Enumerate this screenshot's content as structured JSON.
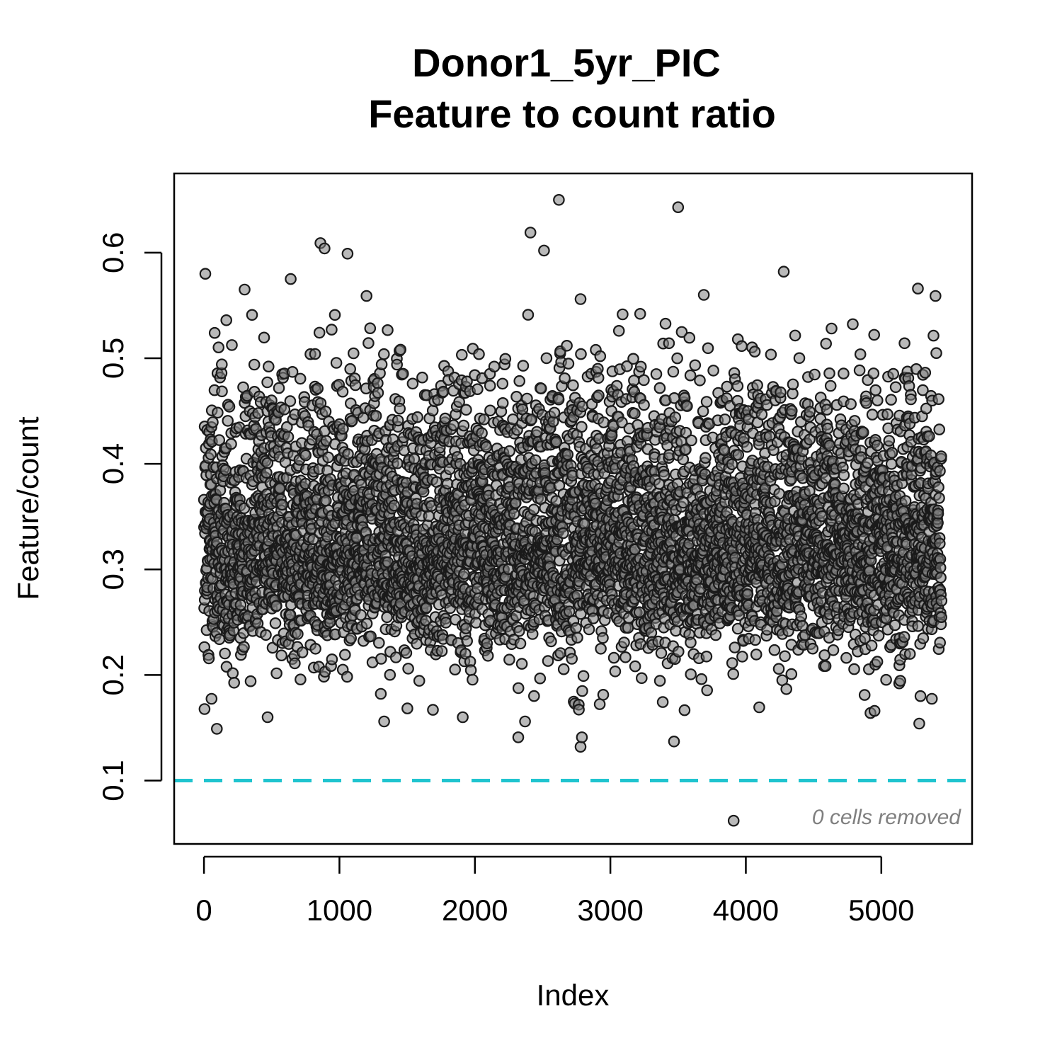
{
  "chart_data": {
    "type": "scatter",
    "title": "Donor1_5yr_PIC",
    "subtitle": "Feature to count ratio",
    "xlabel": "Index",
    "ylabel": "Feature/count",
    "xlim": [
      -220,
      5670
    ],
    "ylim": [
      0.04,
      0.675
    ],
    "x_ticks": [
      0,
      1000,
      2000,
      3000,
      4000,
      5000
    ],
    "y_ticks": [
      0.1,
      0.2,
      0.3,
      0.4,
      0.5,
      0.6
    ],
    "x_tick_labels": [
      "0",
      "1000",
      "2000",
      "3000",
      "4000",
      "5000"
    ],
    "y_tick_labels": [
      "0.1",
      "0.2",
      "0.3",
      "0.4",
      "0.5",
      "0.6"
    ],
    "threshold": {
      "value": 0.1,
      "color": "#1fc4cf",
      "style": "dashed"
    },
    "annotation": "0 cells removed",
    "n_points": 5450,
    "point_color": "#808080",
    "grid": false,
    "notable_points": [
      {
        "x": 2620,
        "y": 0.65
      },
      {
        "x": 3500,
        "y": 0.643
      },
      {
        "x": 2410,
        "y": 0.619
      },
      {
        "x": 860,
        "y": 0.609
      },
      {
        "x": 890,
        "y": 0.604
      },
      {
        "x": 2510,
        "y": 0.602
      },
      {
        "x": 1060,
        "y": 0.599
      },
      {
        "x": 10,
        "y": 0.58
      },
      {
        "x": 4280,
        "y": 0.582
      },
      {
        "x": 640,
        "y": 0.575
      },
      {
        "x": 300,
        "y": 0.565
      },
      {
        "x": 5270,
        "y": 0.566
      },
      {
        "x": 3690,
        "y": 0.56
      },
      {
        "x": 1200,
        "y": 0.559
      },
      {
        "x": 5400,
        "y": 0.559
      },
      {
        "x": 2780,
        "y": 0.556
      },
      {
        "x": 165,
        "y": 0.536
      },
      {
        "x": 355,
        "y": 0.541
      },
      {
        "x": 3220,
        "y": 0.542
      },
      {
        "x": 3910,
        "y": 0.062
      },
      {
        "x": 95,
        "y": 0.149
      },
      {
        "x": 1330,
        "y": 0.156
      },
      {
        "x": 2320,
        "y": 0.141
      },
      {
        "x": 2370,
        "y": 0.156
      },
      {
        "x": 2780,
        "y": 0.132
      },
      {
        "x": 2790,
        "y": 0.141
      },
      {
        "x": 3470,
        "y": 0.137
      },
      {
        "x": 5280,
        "y": 0.154
      },
      {
        "x": 4920,
        "y": 0.164
      },
      {
        "x": 4950,
        "y": 0.166
      },
      {
        "x": 1690,
        "y": 0.167
      },
      {
        "x": 1910,
        "y": 0.16
      },
      {
        "x": 470,
        "y": 0.16
      }
    ]
  }
}
